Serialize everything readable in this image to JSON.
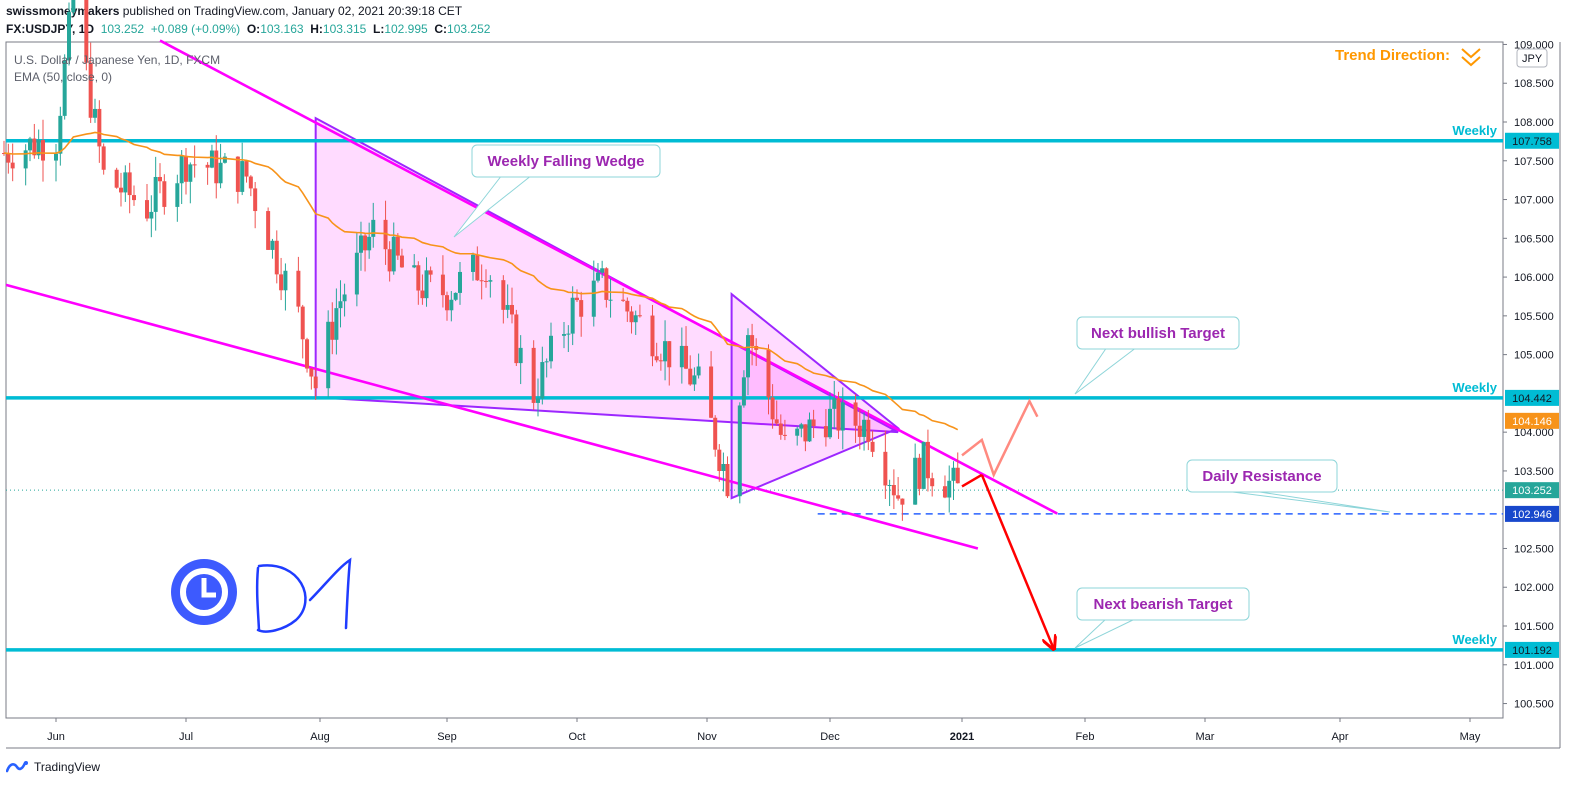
{
  "header": {
    "publisher": "swissmoneymakers",
    "published_text": "published on TradingView.com, January 02, 2021 20:39:18 CET",
    "symbol": "FX:USDJPY, 1D",
    "last": "103.252",
    "change": "+0.089 (+0.09%)",
    "o_label": "O:",
    "o": "103.163",
    "h_label": "H:",
    "h": "103.315",
    "l_label": "L:",
    "l": "102.995",
    "c_label": "C:",
    "c": "103.252"
  },
  "legend": {
    "title": "U.S. Dollar / Japanese Yen, 1D, FXCM",
    "ema": "EMA (50, close, 0)"
  },
  "footer": {
    "brand": "TradingView"
  },
  "colors": {
    "bull": "#26a69a",
    "bear": "#ef5350",
    "ema": "#f7931a",
    "weekly": "#00bcd4",
    "wedge": "#ff00ff",
    "triangle": "#9c27ff",
    "annotation_text": "#9c27b0",
    "target_down": "#ff0000",
    "target_up": "#ff8a80"
  },
  "chart_data": {
    "type": "candlestick",
    "y_axis": {
      "min": 100.3,
      "max": 109.0,
      "position": "right",
      "currency": "JPY",
      "ticks": [
        "109.000",
        "108.500",
        "108.000",
        "107.500",
        "107.000",
        "106.500",
        "106.000",
        "105.500",
        "105.000",
        "104.000",
        "103.500",
        "102.500",
        "102.000",
        "101.500",
        "101.000",
        "100.500"
      ]
    },
    "x_axis": {
      "ticks": [
        "Jun",
        "Jul",
        "Aug",
        "Sep",
        "Oct",
        "Nov",
        "Dec",
        "2021",
        "Feb",
        "Mar",
        "Apr",
        "May"
      ]
    },
    "price_labels": [
      {
        "value": 107.758,
        "label": "107.758",
        "kind": "weekly"
      },
      {
        "value": 104.442,
        "label": "104.442",
        "kind": "weekly"
      },
      {
        "value": 104.146,
        "label": "104.146",
        "kind": "ema"
      },
      {
        "value": 103.252,
        "label": "103.252",
        "kind": "last"
      },
      {
        "value": 102.946,
        "label": "102.946",
        "kind": "support"
      },
      {
        "value": 101.192,
        "label": "101.192",
        "kind": "weekly"
      }
    ],
    "levels": [
      {
        "value": 107.758,
        "label": "Weekly"
      },
      {
        "value": 104.442,
        "label": "Weekly"
      },
      {
        "value": 101.192,
        "label": "Weekly"
      }
    ],
    "daily_resistance": {
      "value": 102.946
    },
    "annotations": [
      {
        "text": "Weekly Falling Wedge"
      },
      {
        "text": "Next bullish Target"
      },
      {
        "text": "Daily Resistance"
      },
      {
        "text": "Next bearish Target"
      }
    ],
    "trend_label": "Trend Direction:",
    "timeframe_mark": "D1",
    "ohlc_anchor": [
      [
        "2020-05-20",
        107.6
      ],
      [
        "2020-06-01",
        107.8
      ],
      [
        "2020-06-05",
        109.6
      ],
      [
        "2020-06-12",
        107.3
      ],
      [
        "2020-06-22",
        106.9
      ],
      [
        "2020-07-01",
        107.5
      ],
      [
        "2020-07-15",
        107.3
      ],
      [
        "2020-07-27",
        105.5
      ],
      [
        "2020-07-31",
        104.6
      ],
      [
        "2020-08-05",
        105.6
      ],
      [
        "2020-08-14",
        106.6
      ],
      [
        "2020-08-24",
        105.9
      ],
      [
        "2020-09-01",
        105.8
      ],
      [
        "2020-09-10",
        106.2
      ],
      [
        "2020-09-21",
        104.5
      ],
      [
        "2020-09-30",
        105.6
      ],
      [
        "2020-10-07",
        105.9
      ],
      [
        "2020-10-20",
        105.2
      ],
      [
        "2020-10-30",
        104.6
      ],
      [
        "2020-11-06",
        103.4
      ],
      [
        "2020-11-11",
        105.3
      ],
      [
        "2020-11-20",
        103.8
      ],
      [
        "2020-11-30",
        104.2
      ],
      [
        "2020-12-10",
        104.1
      ],
      [
        "2020-12-17",
        103.2
      ],
      [
        "2020-12-23",
        103.6
      ],
      [
        "2020-12-31",
        103.25
      ]
    ]
  }
}
